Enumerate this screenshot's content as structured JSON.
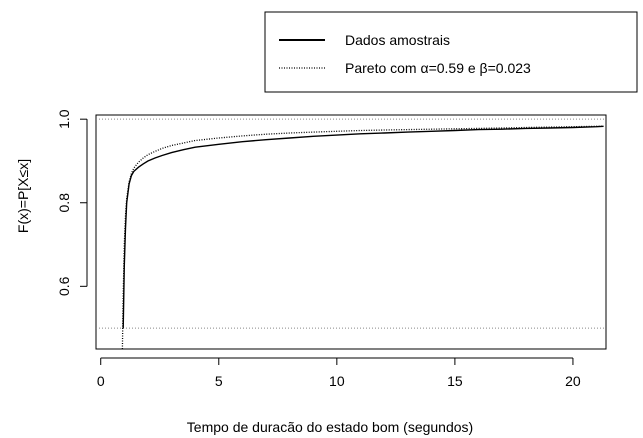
{
  "chart_data": {
    "type": "line",
    "title": "",
    "xlabel": "Tempo de duracão do estado bom (segundos)",
    "ylabel": "F(x)=P[X≤x]",
    "xlim": [
      -0.2,
      21.4
    ],
    "ylim": [
      0.45,
      1.01
    ],
    "x_ticks": [
      "0",
      "5",
      "10",
      "15",
      "20"
    ],
    "y_ticks": [
      "0.6",
      "0.8",
      "1.0"
    ],
    "reference_lines_y": [
      0.5,
      1.0
    ],
    "legend": {
      "position": "top-right",
      "entries": [
        "Dados amostrais",
        "Pareto com α=0.59 e β=0.023"
      ]
    },
    "series": [
      {
        "name": "Dados amostrais",
        "style": "solid",
        "x": [
          0.95,
          1.0,
          1.05,
          1.1,
          1.2,
          1.3,
          1.4,
          1.6,
          1.8,
          2.0,
          2.3,
          2.6,
          3.0,
          3.5,
          4.0,
          5.0,
          6.0,
          7.0,
          8.0,
          9.0,
          10.0,
          11.0,
          12.0,
          13.0,
          14.0,
          15.0,
          16.0,
          17.0,
          18.0,
          19.0,
          20.0,
          21.0,
          21.3
        ],
        "y": [
          0.5,
          0.65,
          0.74,
          0.8,
          0.845,
          0.865,
          0.875,
          0.885,
          0.893,
          0.9,
          0.907,
          0.913,
          0.92,
          0.927,
          0.933,
          0.94,
          0.946,
          0.951,
          0.955,
          0.959,
          0.962,
          0.965,
          0.967,
          0.969,
          0.971,
          0.973,
          0.975,
          0.976,
          0.978,
          0.979,
          0.98,
          0.982,
          0.983
        ]
      },
      {
        "name": "Pareto com α=0.59 e β=0.023",
        "style": "dotted",
        "x": [
          0.92,
          0.95,
          1.0,
          1.05,
          1.1,
          1.2,
          1.3,
          1.4,
          1.6,
          1.8,
          2.0,
          2.3,
          2.6,
          3.0,
          3.5,
          4.0,
          5.0,
          6.0,
          7.0,
          8.0,
          9.0,
          10.0,
          11.0,
          12.0,
          13.0,
          14.0,
          15.0,
          16.0,
          17.0,
          18.0,
          19.0,
          20.0,
          21.0,
          21.3
        ],
        "y": [
          0.45,
          0.58,
          0.7,
          0.77,
          0.81,
          0.85,
          0.87,
          0.883,
          0.897,
          0.907,
          0.915,
          0.923,
          0.93,
          0.937,
          0.943,
          0.949,
          0.955,
          0.96,
          0.964,
          0.967,
          0.969,
          0.971,
          0.973,
          0.974,
          0.975,
          0.976,
          0.977,
          0.978,
          0.979,
          0.98,
          0.981,
          0.982,
          0.983,
          0.983
        ]
      }
    ]
  }
}
